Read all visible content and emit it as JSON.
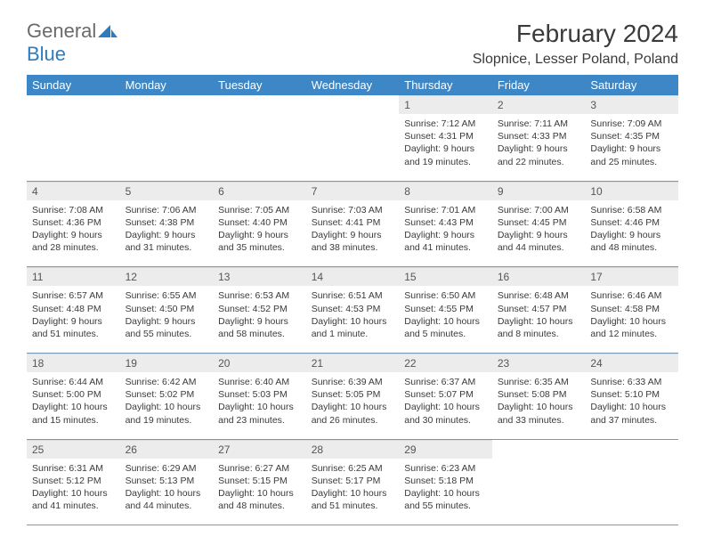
{
  "brand": {
    "word1": "General",
    "word2": "Blue",
    "word1_color": "#6a6a6a",
    "word2_color": "#2e7cc0",
    "icon_color": "#2e7cc0"
  },
  "header": {
    "title": "February 2024",
    "location": "Slopnice, Lesser Poland, Poland"
  },
  "colors": {
    "header_bg": "#3d87c7",
    "header_fg": "#ffffff",
    "daynum_bg": "#ececec",
    "row_border": "#7a98b5",
    "text": "#3a3a3a"
  },
  "day_headers": [
    "Sunday",
    "Monday",
    "Tuesday",
    "Wednesday",
    "Thursday",
    "Friday",
    "Saturday"
  ],
  "weeks": [
    [
      {
        "empty": true
      },
      {
        "empty": true
      },
      {
        "empty": true
      },
      {
        "empty": true
      },
      {
        "num": "1",
        "sunrise": "Sunrise: 7:12 AM",
        "sunset": "Sunset: 4:31 PM",
        "d1": "Daylight: 9 hours",
        "d2": "and 19 minutes."
      },
      {
        "num": "2",
        "sunrise": "Sunrise: 7:11 AM",
        "sunset": "Sunset: 4:33 PM",
        "d1": "Daylight: 9 hours",
        "d2": "and 22 minutes."
      },
      {
        "num": "3",
        "sunrise": "Sunrise: 7:09 AM",
        "sunset": "Sunset: 4:35 PM",
        "d1": "Daylight: 9 hours",
        "d2": "and 25 minutes."
      }
    ],
    [
      {
        "num": "4",
        "sunrise": "Sunrise: 7:08 AM",
        "sunset": "Sunset: 4:36 PM",
        "d1": "Daylight: 9 hours",
        "d2": "and 28 minutes."
      },
      {
        "num": "5",
        "sunrise": "Sunrise: 7:06 AM",
        "sunset": "Sunset: 4:38 PM",
        "d1": "Daylight: 9 hours",
        "d2": "and 31 minutes."
      },
      {
        "num": "6",
        "sunrise": "Sunrise: 7:05 AM",
        "sunset": "Sunset: 4:40 PM",
        "d1": "Daylight: 9 hours",
        "d2": "and 35 minutes."
      },
      {
        "num": "7",
        "sunrise": "Sunrise: 7:03 AM",
        "sunset": "Sunset: 4:41 PM",
        "d1": "Daylight: 9 hours",
        "d2": "and 38 minutes."
      },
      {
        "num": "8",
        "sunrise": "Sunrise: 7:01 AM",
        "sunset": "Sunset: 4:43 PM",
        "d1": "Daylight: 9 hours",
        "d2": "and 41 minutes."
      },
      {
        "num": "9",
        "sunrise": "Sunrise: 7:00 AM",
        "sunset": "Sunset: 4:45 PM",
        "d1": "Daylight: 9 hours",
        "d2": "and 44 minutes."
      },
      {
        "num": "10",
        "sunrise": "Sunrise: 6:58 AM",
        "sunset": "Sunset: 4:46 PM",
        "d1": "Daylight: 9 hours",
        "d2": "and 48 minutes."
      }
    ],
    [
      {
        "num": "11",
        "sunrise": "Sunrise: 6:57 AM",
        "sunset": "Sunset: 4:48 PM",
        "d1": "Daylight: 9 hours",
        "d2": "and 51 minutes."
      },
      {
        "num": "12",
        "sunrise": "Sunrise: 6:55 AM",
        "sunset": "Sunset: 4:50 PM",
        "d1": "Daylight: 9 hours",
        "d2": "and 55 minutes."
      },
      {
        "num": "13",
        "sunrise": "Sunrise: 6:53 AM",
        "sunset": "Sunset: 4:52 PM",
        "d1": "Daylight: 9 hours",
        "d2": "and 58 minutes."
      },
      {
        "num": "14",
        "sunrise": "Sunrise: 6:51 AM",
        "sunset": "Sunset: 4:53 PM",
        "d1": "Daylight: 10 hours",
        "d2": "and 1 minute."
      },
      {
        "num": "15",
        "sunrise": "Sunrise: 6:50 AM",
        "sunset": "Sunset: 4:55 PM",
        "d1": "Daylight: 10 hours",
        "d2": "and 5 minutes."
      },
      {
        "num": "16",
        "sunrise": "Sunrise: 6:48 AM",
        "sunset": "Sunset: 4:57 PM",
        "d1": "Daylight: 10 hours",
        "d2": "and 8 minutes."
      },
      {
        "num": "17",
        "sunrise": "Sunrise: 6:46 AM",
        "sunset": "Sunset: 4:58 PM",
        "d1": "Daylight: 10 hours",
        "d2": "and 12 minutes."
      }
    ],
    [
      {
        "num": "18",
        "sunrise": "Sunrise: 6:44 AM",
        "sunset": "Sunset: 5:00 PM",
        "d1": "Daylight: 10 hours",
        "d2": "and 15 minutes."
      },
      {
        "num": "19",
        "sunrise": "Sunrise: 6:42 AM",
        "sunset": "Sunset: 5:02 PM",
        "d1": "Daylight: 10 hours",
        "d2": "and 19 minutes."
      },
      {
        "num": "20",
        "sunrise": "Sunrise: 6:40 AM",
        "sunset": "Sunset: 5:03 PM",
        "d1": "Daylight: 10 hours",
        "d2": "and 23 minutes."
      },
      {
        "num": "21",
        "sunrise": "Sunrise: 6:39 AM",
        "sunset": "Sunset: 5:05 PM",
        "d1": "Daylight: 10 hours",
        "d2": "and 26 minutes."
      },
      {
        "num": "22",
        "sunrise": "Sunrise: 6:37 AM",
        "sunset": "Sunset: 5:07 PM",
        "d1": "Daylight: 10 hours",
        "d2": "and 30 minutes."
      },
      {
        "num": "23",
        "sunrise": "Sunrise: 6:35 AM",
        "sunset": "Sunset: 5:08 PM",
        "d1": "Daylight: 10 hours",
        "d2": "and 33 minutes."
      },
      {
        "num": "24",
        "sunrise": "Sunrise: 6:33 AM",
        "sunset": "Sunset: 5:10 PM",
        "d1": "Daylight: 10 hours",
        "d2": "and 37 minutes."
      }
    ],
    [
      {
        "num": "25",
        "sunrise": "Sunrise: 6:31 AM",
        "sunset": "Sunset: 5:12 PM",
        "d1": "Daylight: 10 hours",
        "d2": "and 41 minutes."
      },
      {
        "num": "26",
        "sunrise": "Sunrise: 6:29 AM",
        "sunset": "Sunset: 5:13 PM",
        "d1": "Daylight: 10 hours",
        "d2": "and 44 minutes."
      },
      {
        "num": "27",
        "sunrise": "Sunrise: 6:27 AM",
        "sunset": "Sunset: 5:15 PM",
        "d1": "Daylight: 10 hours",
        "d2": "and 48 minutes."
      },
      {
        "num": "28",
        "sunrise": "Sunrise: 6:25 AM",
        "sunset": "Sunset: 5:17 PM",
        "d1": "Daylight: 10 hours",
        "d2": "and 51 minutes."
      },
      {
        "num": "29",
        "sunrise": "Sunrise: 6:23 AM",
        "sunset": "Sunset: 5:18 PM",
        "d1": "Daylight: 10 hours",
        "d2": "and 55 minutes."
      },
      {
        "empty": true
      },
      {
        "empty": true
      }
    ]
  ]
}
